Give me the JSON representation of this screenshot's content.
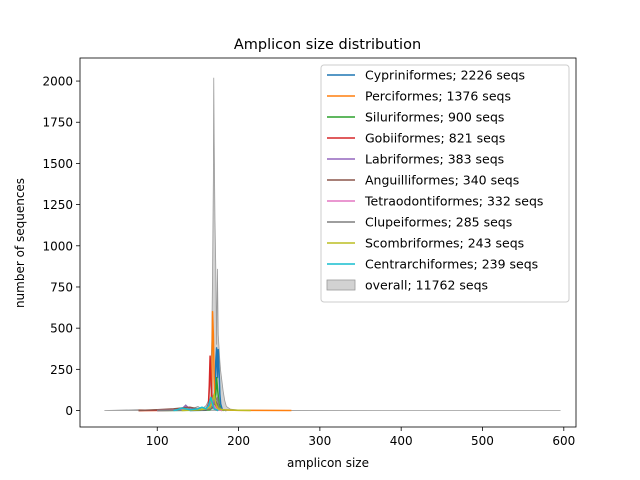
{
  "chart_data": {
    "type": "line",
    "title": "Amplicon size distribution",
    "xlabel": "amplicon size",
    "ylabel": "number of sequences",
    "xlim": [
      5,
      615
    ],
    "ylim": [
      -100,
      2140
    ],
    "xticks": [
      100,
      200,
      300,
      400,
      500,
      600
    ],
    "yticks": [
      0,
      250,
      500,
      750,
      1000,
      1250,
      1500,
      1750,
      2000
    ],
    "grid": false,
    "legend_position": "top-right",
    "overall": {
      "name": "overall; 11762 seqs",
      "color": "#bfbfbf",
      "points": [
        [
          35,
          0
        ],
        [
          77,
          5
        ],
        [
          90,
          3
        ],
        [
          102,
          7
        ],
        [
          115,
          5
        ],
        [
          125,
          10
        ],
        [
          132,
          18
        ],
        [
          135,
          35
        ],
        [
          138,
          20
        ],
        [
          145,
          15
        ],
        [
          150,
          25
        ],
        [
          155,
          10
        ],
        [
          160,
          30
        ],
        [
          163,
          60
        ],
        [
          165,
          150
        ],
        [
          166,
          260
        ],
        [
          167,
          420
        ],
        [
          168,
          820
        ],
        [
          169,
          1400
        ],
        [
          169.5,
          2020
        ],
        [
          170,
          1650
        ],
        [
          171,
          1150
        ],
        [
          172,
          870
        ],
        [
          173,
          400
        ],
        [
          174,
          860
        ],
        [
          175,
          460
        ],
        [
          176,
          380
        ],
        [
          177,
          300
        ],
        [
          178,
          240
        ],
        [
          179,
          200
        ],
        [
          180,
          160
        ],
        [
          181,
          120
        ],
        [
          182,
          90
        ],
        [
          183,
          60
        ],
        [
          185,
          25
        ],
        [
          190,
          8
        ],
        [
          200,
          3
        ],
        [
          260,
          1
        ],
        [
          400,
          0
        ],
        [
          596,
          0
        ]
      ]
    },
    "series": [
      {
        "name": "Cypriniformes; 2226 seqs",
        "color": "#1f77b4",
        "points": [
          [
            140,
            0
          ],
          [
            160,
            2
          ],
          [
            170,
            20
          ],
          [
            171,
            150
          ],
          [
            172,
            300
          ],
          [
            173,
            380
          ],
          [
            174,
            200
          ],
          [
            175,
            370
          ],
          [
            176,
            250
          ],
          [
            177,
            100
          ],
          [
            178,
            40
          ],
          [
            180,
            5
          ],
          [
            185,
            0
          ]
        ]
      },
      {
        "name": "Perciformes; 1376 seqs",
        "color": "#ff7f0e",
        "points": [
          [
            77,
            0
          ],
          [
            120,
            2
          ],
          [
            160,
            5
          ],
          [
            166,
            30
          ],
          [
            167,
            120
          ],
          [
            168,
            600
          ],
          [
            169,
            460
          ],
          [
            170,
            200
          ],
          [
            171,
            80
          ],
          [
            172,
            20
          ],
          [
            175,
            5
          ],
          [
            200,
            1
          ],
          [
            265,
            0
          ]
        ]
      },
      {
        "name": "Siluriformes; 900 seqs",
        "color": "#2ca02c",
        "points": [
          [
            100,
            0
          ],
          [
            150,
            2
          ],
          [
            165,
            5
          ],
          [
            170,
            30
          ],
          [
            172,
            100
          ],
          [
            173,
            200
          ],
          [
            174,
            140
          ],
          [
            175,
            90
          ],
          [
            176,
            40
          ],
          [
            178,
            10
          ],
          [
            182,
            0
          ]
        ]
      },
      {
        "name": "Gobiiformes; 821 seqs",
        "color": "#d62728",
        "points": [
          [
            77,
            0
          ],
          [
            120,
            2
          ],
          [
            160,
            5
          ],
          [
            163,
            40
          ],
          [
            164,
            150
          ],
          [
            165,
            330
          ],
          [
            166,
            200
          ],
          [
            167,
            100
          ],
          [
            168,
            50
          ],
          [
            170,
            10
          ],
          [
            175,
            0
          ]
        ]
      },
      {
        "name": "Labriformes; 383 seqs",
        "color": "#9467bd",
        "points": [
          [
            100,
            0
          ],
          [
            130,
            10
          ],
          [
            135,
            30
          ],
          [
            140,
            10
          ],
          [
            160,
            5
          ],
          [
            168,
            60
          ],
          [
            169,
            90
          ],
          [
            170,
            40
          ],
          [
            172,
            10
          ],
          [
            180,
            0
          ]
        ]
      },
      {
        "name": "Anguilliformes; 340 seqs",
        "color": "#8c564b",
        "points": [
          [
            77,
            0
          ],
          [
            100,
            5
          ],
          [
            120,
            10
          ],
          [
            140,
            20
          ],
          [
            150,
            10
          ],
          [
            160,
            5
          ],
          [
            170,
            20
          ],
          [
            172,
            60
          ],
          [
            174,
            30
          ],
          [
            176,
            10
          ],
          [
            180,
            0
          ]
        ]
      },
      {
        "name": "Tetraodontiformes; 332 seqs",
        "color": "#e377c2",
        "points": [
          [
            100,
            0
          ],
          [
            140,
            5
          ],
          [
            150,
            10
          ],
          [
            155,
            5
          ],
          [
            165,
            20
          ],
          [
            168,
            40
          ],
          [
            170,
            30
          ],
          [
            172,
            10
          ],
          [
            180,
            0
          ]
        ]
      },
      {
        "name": "Clupeiformes; 285 seqs",
        "color": "#7f7f7f",
        "points": [
          [
            100,
            0
          ],
          [
            140,
            2
          ],
          [
            165,
            10
          ],
          [
            170,
            40
          ],
          [
            172,
            60
          ],
          [
            174,
            80
          ],
          [
            175,
            40
          ],
          [
            176,
            20
          ],
          [
            180,
            5
          ],
          [
            185,
            0
          ]
        ]
      },
      {
        "name": "Scombriformes; 243 seqs",
        "color": "#bcbd22",
        "points": [
          [
            130,
            0
          ],
          [
            150,
            5
          ],
          [
            160,
            10
          ],
          [
            165,
            20
          ],
          [
            168,
            60
          ],
          [
            170,
            100
          ],
          [
            172,
            40
          ],
          [
            175,
            10
          ],
          [
            180,
            5
          ],
          [
            200,
            2
          ],
          [
            215,
            0
          ]
        ]
      },
      {
        "name": "Centrarchiformes; 239 seqs",
        "color": "#17becf",
        "points": [
          [
            120,
            0
          ],
          [
            125,
            5
          ],
          [
            130,
            15
          ],
          [
            135,
            10
          ],
          [
            140,
            5
          ],
          [
            150,
            10
          ],
          [
            155,
            20
          ],
          [
            160,
            10
          ],
          [
            163,
            30
          ],
          [
            166,
            80
          ],
          [
            168,
            40
          ],
          [
            170,
            10
          ],
          [
            175,
            0
          ]
        ]
      }
    ]
  }
}
